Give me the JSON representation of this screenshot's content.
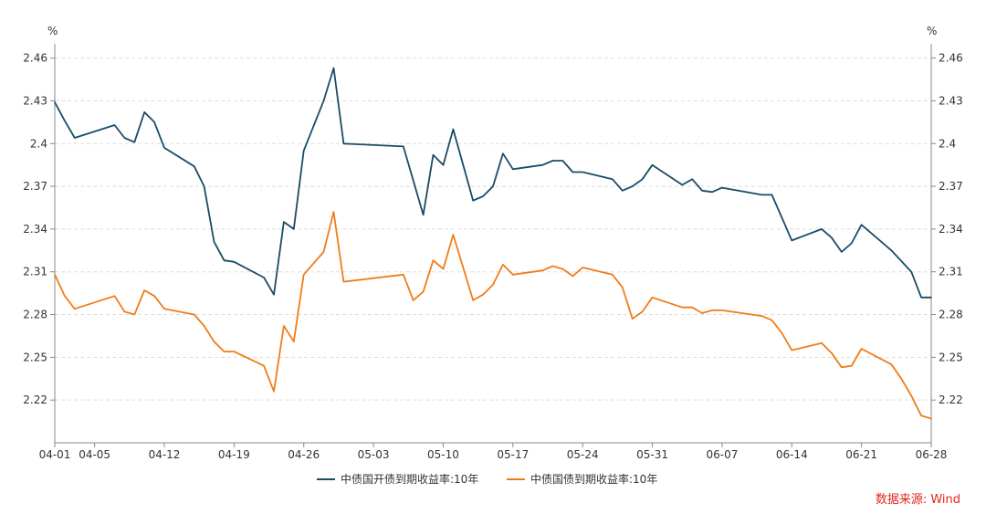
{
  "chart_data": {
    "type": "line",
    "y_unit_left": "%",
    "y_unit_right": "%",
    "ylim": [
      2.19,
      2.47
    ],
    "yticks": [
      "2.46",
      "2.43",
      "2.4",
      "2.37",
      "2.34",
      "2.31",
      "2.28",
      "2.25",
      "2.22"
    ],
    "xticks": [
      {
        "label": "04-01",
        "day": 0
      },
      {
        "label": "04-05",
        "day": 4
      },
      {
        "label": "04-12",
        "day": 11
      },
      {
        "label": "04-19",
        "day": 18
      },
      {
        "label": "04-26",
        "day": 25
      },
      {
        "label": "05-03",
        "day": 32
      },
      {
        "label": "05-10",
        "day": 39
      },
      {
        "label": "05-17",
        "day": 46
      },
      {
        "label": "05-24",
        "day": 53
      },
      {
        "label": "05-31",
        "day": 60
      },
      {
        "label": "06-07",
        "day": 67
      },
      {
        "label": "06-14",
        "day": 74
      },
      {
        "label": "06-21",
        "day": 81
      },
      {
        "label": "06-28",
        "day": 88
      }
    ],
    "grid": true,
    "legend_position": "bottom",
    "series": [
      {
        "name": "中债国开债到期收益率:10年",
        "color": "#1b4b66",
        "points": [
          [
            0,
            2.429
          ],
          [
            1,
            2.416
          ],
          [
            2,
            2.404
          ],
          [
            6,
            2.413
          ],
          [
            7,
            2.404
          ],
          [
            8,
            2.401
          ],
          [
            9,
            2.422
          ],
          [
            10,
            2.415
          ],
          [
            11,
            2.397
          ],
          [
            14,
            2.384
          ],
          [
            15,
            2.37
          ],
          [
            16,
            2.331
          ],
          [
            17,
            2.318
          ],
          [
            18,
            2.317
          ],
          [
            21,
            2.306
          ],
          [
            22,
            2.294
          ],
          [
            23,
            2.345
          ],
          [
            24,
            2.34
          ],
          [
            25,
            2.395
          ],
          [
            27,
            2.43
          ],
          [
            28,
            2.453
          ],
          [
            29,
            2.4
          ],
          [
            35,
            2.398
          ],
          [
            37,
            2.35
          ],
          [
            38,
            2.392
          ],
          [
            39,
            2.385
          ],
          [
            40,
            2.41
          ],
          [
            42,
            2.36
          ],
          [
            43,
            2.363
          ],
          [
            44,
            2.37
          ],
          [
            45,
            2.393
          ],
          [
            46,
            2.382
          ],
          [
            49,
            2.385
          ],
          [
            50,
            2.388
          ],
          [
            51,
            2.388
          ],
          [
            52,
            2.38
          ],
          [
            53,
            2.38
          ],
          [
            56,
            2.375
          ],
          [
            57,
            2.367
          ],
          [
            58,
            2.37
          ],
          [
            59,
            2.375
          ],
          [
            60,
            2.385
          ],
          [
            63,
            2.371
          ],
          [
            64,
            2.375
          ],
          [
            65,
            2.367
          ],
          [
            66,
            2.366
          ],
          [
            67,
            2.369
          ],
          [
            71,
            2.364
          ],
          [
            72,
            2.364
          ],
          [
            74,
            2.332
          ],
          [
            77,
            2.34
          ],
          [
            78,
            2.334
          ],
          [
            79,
            2.324
          ],
          [
            80,
            2.33
          ],
          [
            81,
            2.343
          ],
          [
            84,
            2.325
          ],
          [
            86,
            2.31
          ],
          [
            87,
            2.292
          ],
          [
            88,
            2.292
          ]
        ]
      },
      {
        "name": "中债国债到期收益率:10年",
        "color": "#ef7d1a",
        "points": [
          [
            0,
            2.308
          ],
          [
            1,
            2.293
          ],
          [
            2,
            2.284
          ],
          [
            6,
            2.293
          ],
          [
            7,
            2.282
          ],
          [
            8,
            2.28
          ],
          [
            9,
            2.297
          ],
          [
            10,
            2.293
          ],
          [
            11,
            2.284
          ],
          [
            14,
            2.28
          ],
          [
            15,
            2.272
          ],
          [
            16,
            2.261
          ],
          [
            17,
            2.254
          ],
          [
            18,
            2.254
          ],
          [
            21,
            2.244
          ],
          [
            22,
            2.226
          ],
          [
            23,
            2.272
          ],
          [
            24,
            2.261
          ],
          [
            25,
            2.308
          ],
          [
            27,
            2.324
          ],
          [
            28,
            2.352
          ],
          [
            29,
            2.303
          ],
          [
            35,
            2.308
          ],
          [
            36,
            2.29
          ],
          [
            37,
            2.296
          ],
          [
            38,
            2.318
          ],
          [
            39,
            2.312
          ],
          [
            40,
            2.336
          ],
          [
            42,
            2.29
          ],
          [
            43,
            2.294
          ],
          [
            44,
            2.301
          ],
          [
            45,
            2.315
          ],
          [
            46,
            2.308
          ],
          [
            49,
            2.311
          ],
          [
            50,
            2.314
          ],
          [
            51,
            2.312
          ],
          [
            52,
            2.307
          ],
          [
            53,
            2.313
          ],
          [
            56,
            2.308
          ],
          [
            57,
            2.299
          ],
          [
            58,
            2.277
          ],
          [
            59,
            2.282
          ],
          [
            60,
            2.292
          ],
          [
            63,
            2.285
          ],
          [
            64,
            2.285
          ],
          [
            65,
            2.281
          ],
          [
            66,
            2.283
          ],
          [
            67,
            2.283
          ],
          [
            71,
            2.279
          ],
          [
            72,
            2.276
          ],
          [
            73,
            2.267
          ],
          [
            74,
            2.255
          ],
          [
            77,
            2.26
          ],
          [
            78,
            2.253
          ],
          [
            79,
            2.243
          ],
          [
            80,
            2.244
          ],
          [
            81,
            2.256
          ],
          [
            84,
            2.245
          ],
          [
            85,
            2.235
          ],
          [
            86,
            2.223
          ],
          [
            87,
            2.209
          ],
          [
            88,
            2.207
          ]
        ]
      }
    ]
  },
  "source": "数据来源: Wind"
}
